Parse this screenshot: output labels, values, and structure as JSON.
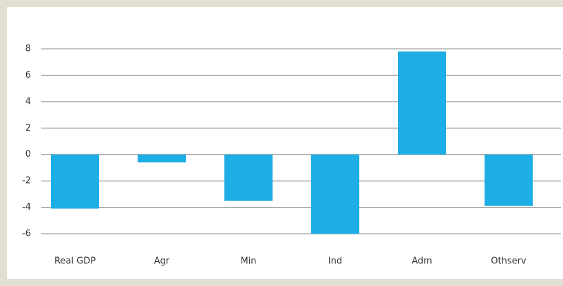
{
  "chart_data": {
    "type": "bar",
    "categories": [
      "Real GDP",
      "Agr",
      "Min",
      "Ind",
      "Adm",
      "Othserv"
    ],
    "values": [
      -4.1,
      -0.6,
      -3.5,
      -6.0,
      7.8,
      -3.9
    ],
    "color": "#1eaee6",
    "ylim": [
      -6,
      8
    ],
    "yticks": [
      -6,
      -4,
      -2,
      0,
      2,
      4,
      6,
      8
    ],
    "grid": true
  }
}
